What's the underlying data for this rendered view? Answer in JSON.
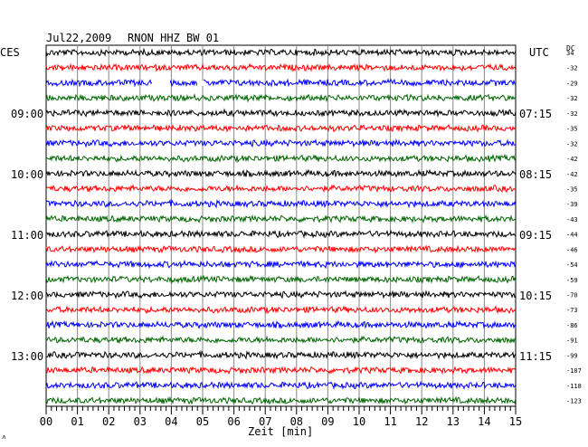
{
  "header": {
    "date": "Jul22,2009",
    "station": "RNON HHZ BW 01",
    "left_timezone": "CES",
    "right_timezone": "UTC",
    "dc_label": "DC"
  },
  "left_hours": [
    "09:00",
    "10:00",
    "11:00",
    "12:00",
    "13:00"
  ],
  "right_hours": [
    "07:15",
    "08:15",
    "09:15",
    "10:15",
    "11:15"
  ],
  "x_ticks": [
    "00",
    "01",
    "02",
    "03",
    "04",
    "05",
    "06",
    "07",
    "08",
    "09",
    "10",
    "11",
    "12",
    "13",
    "14",
    "15"
  ],
  "x_axis_label": "Zeit [min]",
  "trace_colors": [
    "#000000",
    "#ff0000",
    "#0000ff",
    "#006600"
  ],
  "dc_offsets": [
    "34",
    "-32",
    "-29",
    "-32",
    "-32",
    "-35",
    "-32",
    "-42",
    "-42",
    "-35",
    "-39",
    "-43",
    "-44",
    "-46",
    "-54",
    "-59",
    "-70",
    "-73",
    "-86",
    "-91",
    "-99",
    "-107",
    "-118",
    "-123"
  ],
  "corner_mark": "˄"
}
